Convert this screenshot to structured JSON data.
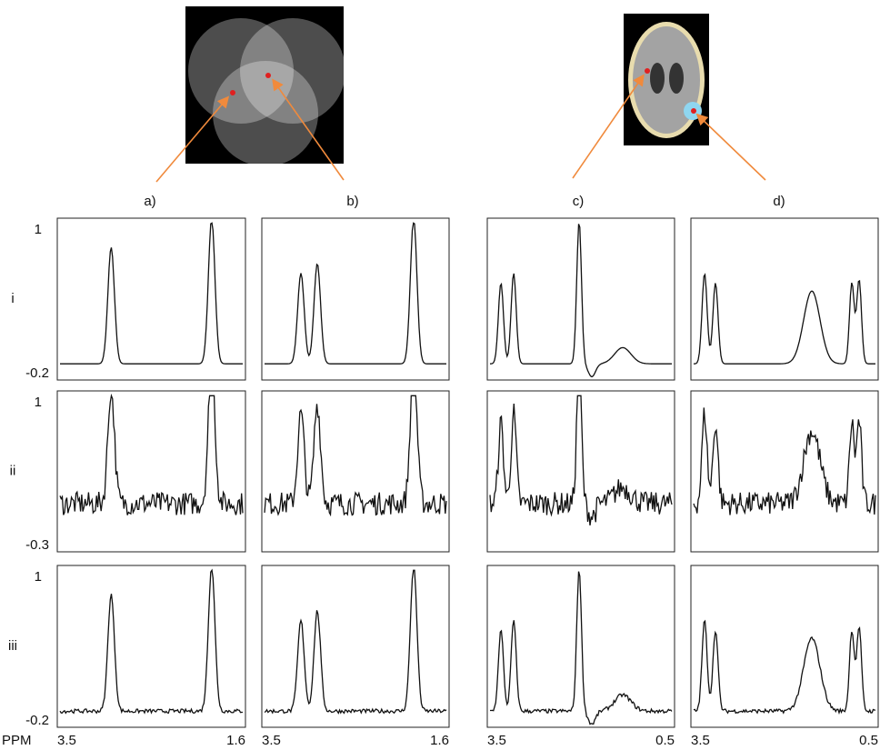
{
  "figure": {
    "top_labels": [
      "a)",
      "b)",
      "c)",
      "d)"
    ],
    "row_labels": [
      "i",
      "ii",
      "iii"
    ],
    "row_axis": [
      {
        "top": "1",
        "bottom": "-0.2"
      },
      {
        "top": "1",
        "bottom": "-0.3"
      },
      {
        "top": "1",
        "bottom": "-0.2"
      }
    ],
    "x_axis": {
      "unit": "PPM",
      "columns": [
        {
          "left": "3.5",
          "right": "1.6"
        },
        {
          "left": "3.5",
          "right": "1.6"
        },
        {
          "left": "3.5",
          "right": "0.5"
        },
        {
          "left": "3.5",
          "right": "0.5"
        }
      ]
    }
  }
}
